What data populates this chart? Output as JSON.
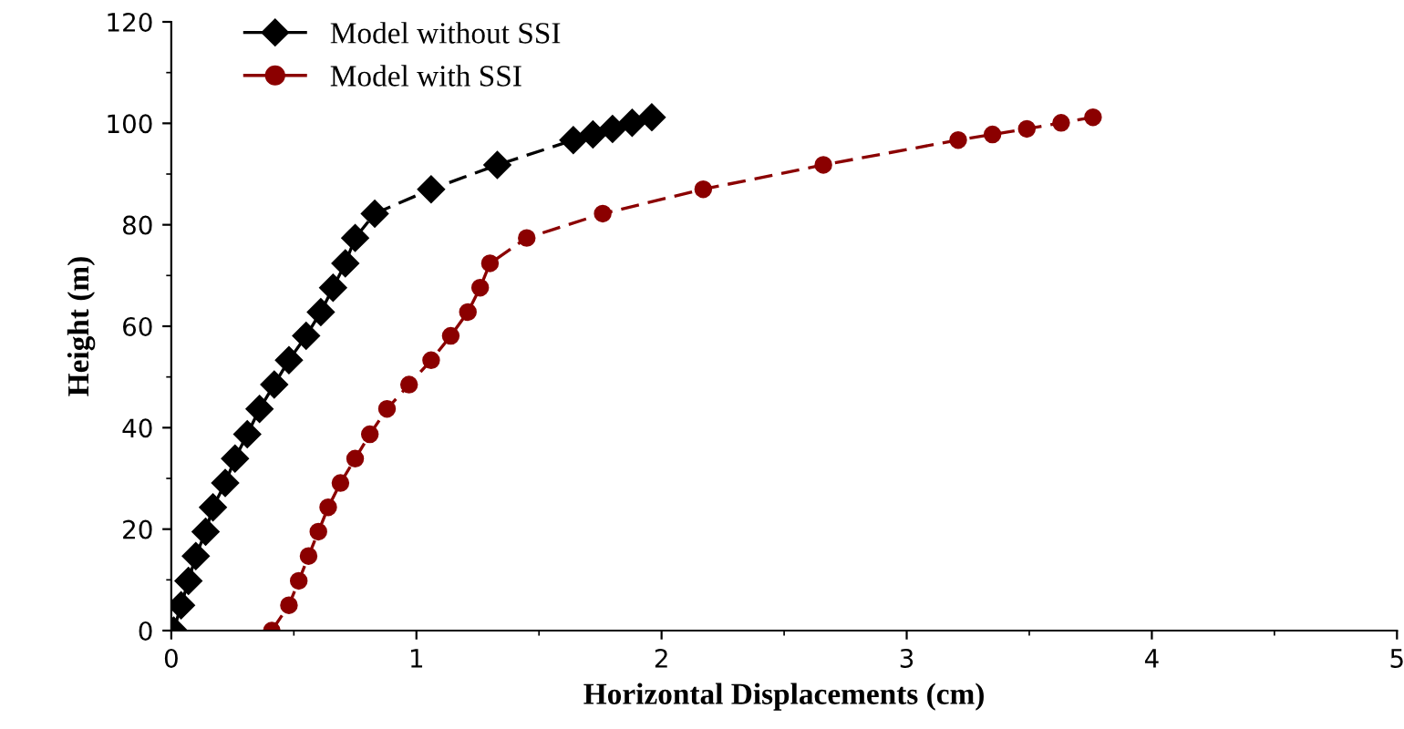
{
  "chart_data": {
    "type": "line",
    "xlabel": "Horizontal Displacements (cm)",
    "ylabel": "Height (m)",
    "xlim": [
      0,
      5
    ],
    "ylim": [
      0,
      120
    ],
    "xticks": [
      0,
      1,
      2,
      3,
      4,
      5
    ],
    "yticks": [
      0,
      20,
      40,
      60,
      80,
      100,
      120
    ],
    "grid": false,
    "legend": "top left",
    "line_style": "dashed",
    "series": [
      {
        "name": "Model without SSI",
        "color": "#000000",
        "marker": "diamond",
        "x": [
          0.01,
          0.04,
          0.07,
          0.1,
          0.14,
          0.17,
          0.22,
          0.26,
          0.31,
          0.36,
          0.42,
          0.48,
          0.55,
          0.61,
          0.66,
          0.71,
          0.75,
          0.83,
          1.06,
          1.33,
          1.64,
          1.72,
          1.8,
          1.88,
          1.96
        ],
        "values": [
          0,
          5,
          9.8,
          14.7,
          19.5,
          24.3,
          29.1,
          33.9,
          38.7,
          43.7,
          48.5,
          53.3,
          58.1,
          62.8,
          67.6,
          72.4,
          77.4,
          82.2,
          87,
          91.8,
          96.7,
          97.8,
          98.9,
          100.1,
          101.2
        ]
      },
      {
        "name": "Model with SSI",
        "color": "#8b0000",
        "marker": "circle",
        "x": [
          0.41,
          0.48,
          0.52,
          0.56,
          0.6,
          0.64,
          0.69,
          0.75,
          0.81,
          0.88,
          0.97,
          1.06,
          1.14,
          1.21,
          1.26,
          1.3,
          1.45,
          1.76,
          2.17,
          2.66,
          3.21,
          3.35,
          3.49,
          3.63,
          3.76
        ],
        "values": [
          0,
          5,
          9.8,
          14.7,
          19.5,
          24.3,
          29.1,
          33.9,
          38.7,
          43.7,
          48.5,
          53.3,
          58.1,
          62.8,
          67.6,
          72.4,
          77.4,
          82.2,
          87,
          91.8,
          96.7,
          97.8,
          98.9,
          100.1,
          101.2
        ]
      }
    ]
  }
}
